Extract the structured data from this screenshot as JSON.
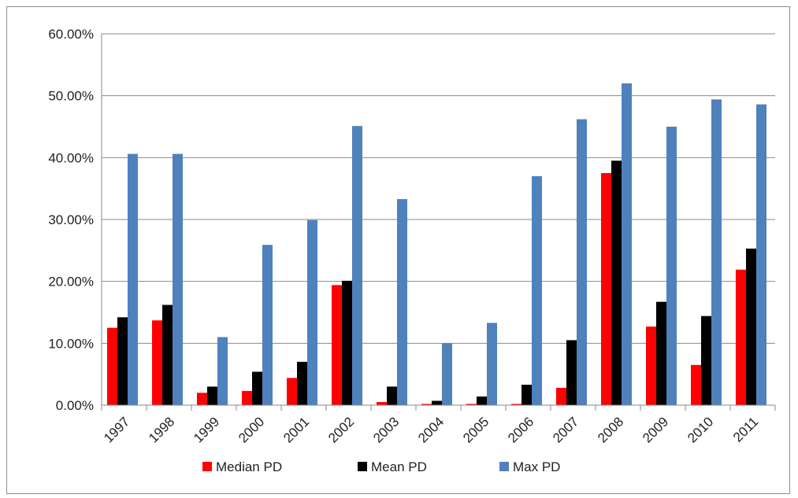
{
  "chart_data": {
    "type": "bar",
    "title": "",
    "xlabel": "",
    "ylabel": "",
    "ylim": [
      0,
      0.6
    ],
    "yticks": [
      0,
      0.1,
      0.2,
      0.3,
      0.4,
      0.5,
      0.6
    ],
    "ytick_labels": [
      "0.00%",
      "10.00%",
      "20.00%",
      "30.00%",
      "40.00%",
      "50.00%",
      "60.00%"
    ],
    "grid": true,
    "legend_position": "bottom",
    "categories": [
      "1997",
      "1998",
      "1999",
      "2000",
      "2001",
      "2002",
      "2003",
      "2004",
      "2005",
      "2006",
      "2007",
      "2008",
      "2009",
      "2010",
      "2011"
    ],
    "series": [
      {
        "name": "Median PD",
        "color": "#ff0000",
        "values": [
          0.125,
          0.137,
          0.02,
          0.023,
          0.044,
          0.194,
          0.005,
          0.002,
          0.002,
          0.002,
          0.028,
          0.375,
          0.127,
          0.065,
          0.219
        ]
      },
      {
        "name": "Mean PD",
        "color": "#000000",
        "values": [
          0.142,
          0.162,
          0.03,
          0.054,
          0.07,
          0.201,
          0.03,
          0.007,
          0.014,
          0.033,
          0.105,
          0.395,
          0.167,
          0.144,
          0.253
        ]
      },
      {
        "name": "Max PD",
        "color": "#4f81bd",
        "values": [
          0.406,
          0.406,
          0.11,
          0.259,
          0.299,
          0.451,
          0.333,
          0.1,
          0.133,
          0.37,
          0.462,
          0.52,
          0.45,
          0.494,
          0.486
        ]
      }
    ]
  }
}
